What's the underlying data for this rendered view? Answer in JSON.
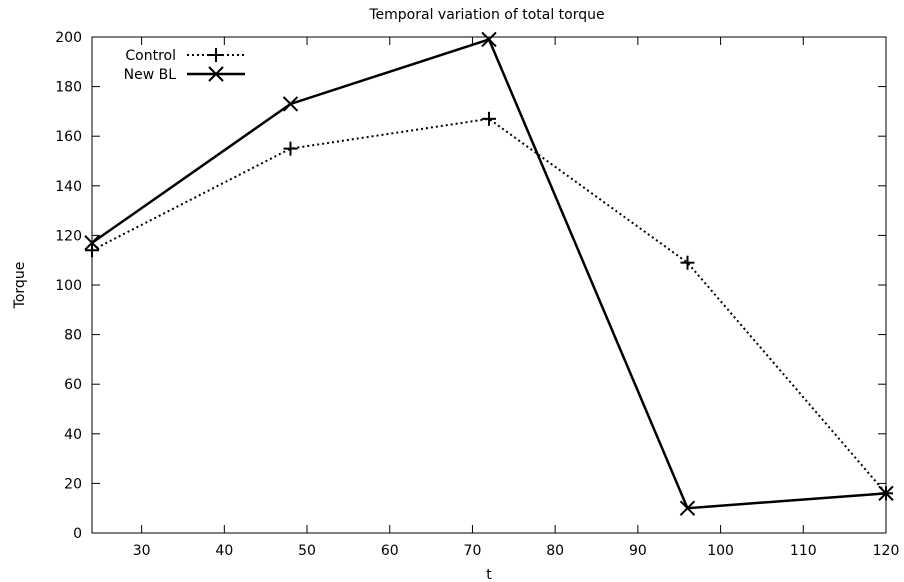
{
  "chart_data": {
    "type": "line",
    "title": "Temporal variation of total torque",
    "xlabel": "t",
    "ylabel": "Torque",
    "xlim": [
      24,
      120
    ],
    "ylim": [
      0,
      200
    ],
    "xticks": [
      30,
      40,
      50,
      60,
      70,
      80,
      90,
      100,
      110,
      120
    ],
    "yticks": [
      0,
      20,
      40,
      60,
      80,
      100,
      120,
      140,
      160,
      180,
      200
    ],
    "legend_position": "top-left",
    "grid": false,
    "series": [
      {
        "name": "Control",
        "style": "dotted",
        "marker": "plus",
        "color": "#000000",
        "x": [
          24,
          48,
          72,
          96,
          120
        ],
        "y": [
          114,
          155,
          167,
          109,
          16
        ]
      },
      {
        "name": "New BL",
        "style": "solid",
        "marker": "cross",
        "color": "#000000",
        "x": [
          24,
          48,
          72,
          96,
          120
        ],
        "y": [
          117,
          173,
          199,
          10,
          16
        ]
      }
    ]
  }
}
